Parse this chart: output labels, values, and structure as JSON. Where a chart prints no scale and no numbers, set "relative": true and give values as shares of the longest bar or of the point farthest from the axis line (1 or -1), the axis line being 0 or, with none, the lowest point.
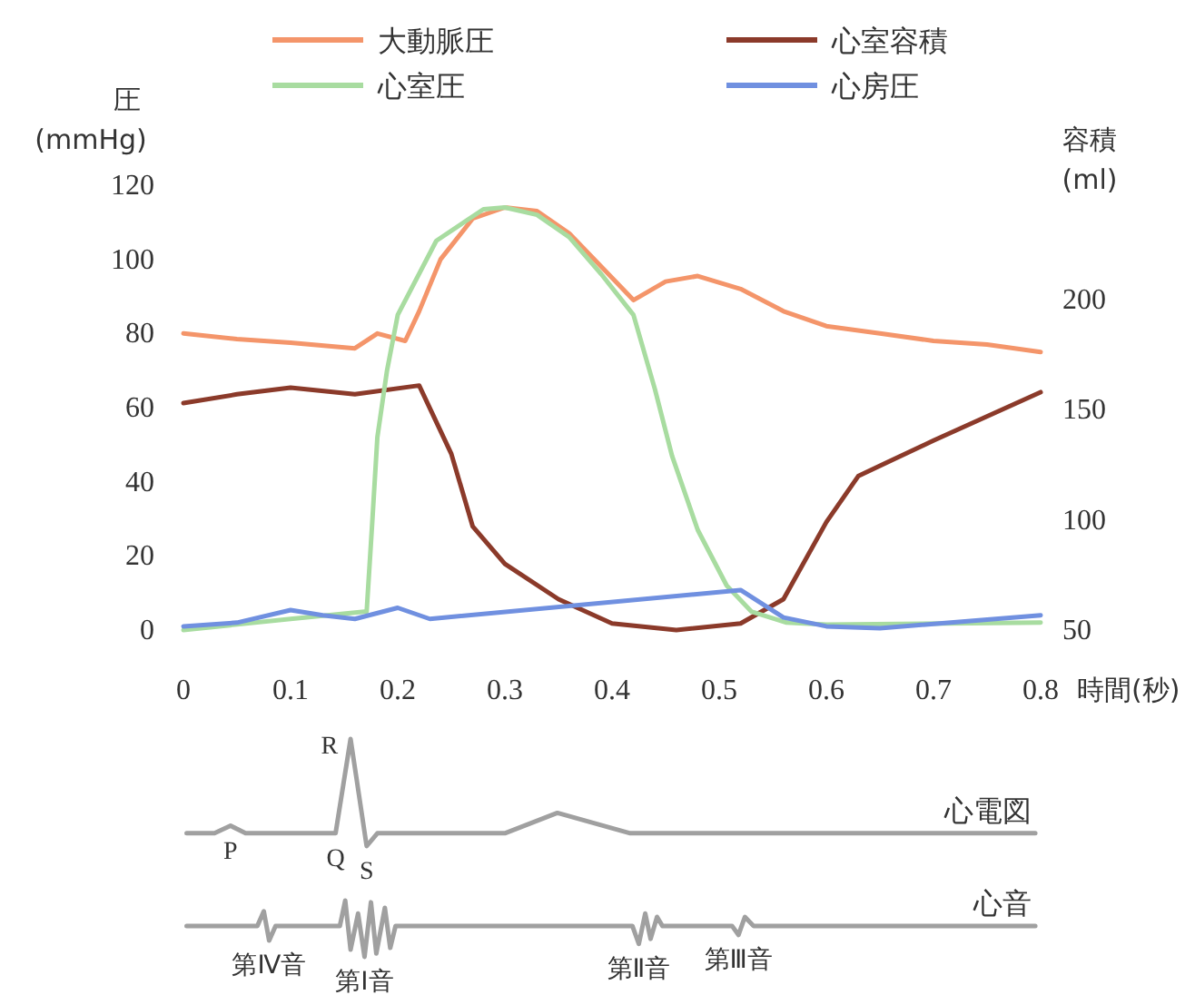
{
  "chart_data": [
    {
      "type": "line",
      "xlabel": "時間(秒)",
      "ylabel": "圧 (mmHg)",
      "y2label": "容積 (ml)",
      "legend": "top",
      "xlim": [
        0,
        0.8
      ],
      "xticks": [
        0,
        0.1,
        0.2,
        0.3,
        0.4,
        0.5,
        0.6,
        0.7,
        0.8
      ],
      "ylim": [
        0,
        120
      ],
      "yticks": [
        0,
        20,
        40,
        60,
        80,
        100,
        120
      ],
      "y2lim": [
        50,
        200
      ],
      "y2ticks": [
        50,
        100,
        150,
        200
      ],
      "series": [
        {
          "name": "大動脈圧",
          "color": "#f4956a",
          "x": [
            0,
            0.05,
            0.1,
            0.16,
            0.181,
            0.207,
            0.22,
            0.24,
            0.27,
            0.3,
            0.33,
            0.36,
            0.39,
            0.42,
            0.45,
            0.48,
            0.52,
            0.56,
            0.6,
            0.65,
            0.7,
            0.75,
            0.8
          ],
          "values": [
            80,
            78.5,
            77.5,
            76,
            80,
            78,
            86,
            100,
            111,
            114,
            113,
            107,
            98,
            89,
            94,
            95.5,
            92,
            86,
            82,
            80,
            78,
            77,
            75
          ]
        },
        {
          "name": "心室容積",
          "color": "#8b3a2a",
          "axis": "y2",
          "x": [
            0,
            0.05,
            0.1,
            0.16,
            0.22,
            0.25,
            0.27,
            0.3,
            0.35,
            0.4,
            0.46,
            0.52,
            0.56,
            0.6,
            0.63,
            0.7,
            0.8
          ],
          "values": [
            153,
            157,
            160,
            157,
            161,
            130,
            97,
            80,
            64,
            53,
            50,
            53,
            64,
            99,
            120,
            136,
            158
          ]
        },
        {
          "name": "心室圧",
          "color": "#a8dca0",
          "x": [
            0,
            0.05,
            0.1,
            0.171,
            0.176,
            0.181,
            0.19,
            0.2,
            0.236,
            0.28,
            0.3,
            0.33,
            0.36,
            0.39,
            0.42,
            0.44,
            0.456,
            0.48,
            0.507,
            0.53,
            0.563,
            0.6,
            0.8
          ],
          "values": [
            0,
            1.5,
            3,
            5,
            28,
            52,
            70,
            85,
            105,
            113.5,
            114,
            112,
            106,
            96,
            85,
            65,
            47,
            27,
            12,
            5,
            2,
            1.5,
            2
          ]
        },
        {
          "name": "心房圧",
          "color": "#7090e0",
          "x": [
            0,
            0.05,
            0.1,
            0.13,
            0.16,
            0.2,
            0.23,
            0.52,
            0.56,
            0.6,
            0.65,
            0.8
          ],
          "values": [
            1,
            2,
            5.4,
            4,
            3,
            6,
            3,
            10.8,
            3.4,
            1,
            0.5,
            4
          ]
        }
      ]
    },
    {
      "type": "line",
      "relative": true,
      "xlim": [
        0,
        0.8
      ],
      "series": [
        {
          "name": "心電図",
          "color": "#a0a0a0",
          "x": [
            0.003,
            0.029,
            0.044,
            0.058,
            0.142,
            0.156,
            0.171,
            0.181,
            0.3,
            0.349,
            0.417,
            0.795
          ],
          "values": [
            0.12,
            0.12,
            0.19,
            0.12,
            0.12,
            1,
            0,
            0.12,
            0.12,
            0.31,
            0.12,
            0.12
          ]
        }
      ],
      "annotations": [
        {
          "text": "P",
          "x": 0.044,
          "y": 0.19
        },
        {
          "text": "Q",
          "x": 0.142,
          "y": 0.12
        },
        {
          "text": "R",
          "x": 0.156,
          "y": 1
        },
        {
          "text": "S",
          "x": 0.171,
          "y": 0
        }
      ]
    },
    {
      "type": "line",
      "relative": true,
      "xlim": [
        0,
        0.8
      ],
      "series": [
        {
          "name": "心音",
          "color": "#a0a0a0",
          "x": [
            0.003,
            0.069,
            0.075,
            0.08,
            0.086,
            0.146,
            0.151,
            0.156,
            0.163,
            0.169,
            0.175,
            0.18,
            0.188,
            0.193,
            0.198,
            0.419,
            0.425,
            0.431,
            0.436,
            0.442,
            0.447,
            0.512,
            0.518,
            0.524,
            0.532,
            0.795
          ],
          "values": [
            0.55,
            0.55,
            0.81,
            0.29,
            0.55,
            0.55,
            1,
            0.13,
            0.77,
            0,
            0.97,
            0.06,
            0.87,
            0.16,
            0.55,
            0.55,
            0.23,
            0.77,
            0.32,
            0.71,
            0.55,
            0.55,
            0.39,
            0.71,
            0.55,
            0.55
          ]
        }
      ],
      "annotations": [
        {
          "text": "第Ⅳ音",
          "x": 0.08,
          "y": 0.29
        },
        {
          "text": "第Ⅰ音",
          "x": 0.169,
          "y": 0
        },
        {
          "text": "第Ⅱ音",
          "x": 0.425,
          "y": 0.23
        },
        {
          "text": "第Ⅲ音",
          "x": 0.518,
          "y": 0.39
        }
      ]
    }
  ]
}
